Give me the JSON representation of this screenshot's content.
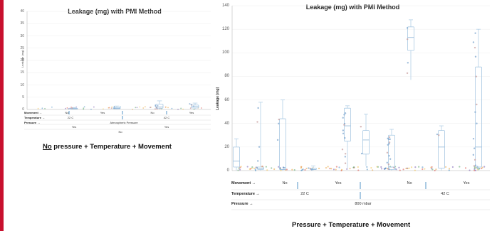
{
  "accent_color": "#c8102e",
  "caption_left": {
    "underlined": "No",
    "rest": " pressure + Temperature + Movement"
  },
  "caption_right": "Pressure + Temperature + Movement",
  "chart_data": [
    {
      "type": "box",
      "title": "Leakage (mg) with PMI Method",
      "ylabel": "Leakage (mg)",
      "ylim": [
        0,
        40
      ],
      "yticks": [
        0,
        5,
        10,
        15,
        20,
        25,
        30,
        35,
        40
      ],
      "header_rows": {
        "movement": {
          "label": "Movement →",
          "values": [
            "No",
            "Yes",
            "No",
            "Yes"
          ]
        },
        "temperature": {
          "label": "Temperature →",
          "values": [
            "22 C",
            "42 C"
          ]
        },
        "pressure": {
          "label": "Pressure →",
          "values": [
            "Atmospheric Pressure"
          ]
        },
        "row4": [
          "Yes",
          "Yes"
        ],
        "row5": [
          "No"
        ]
      },
      "series": [
        {
          "group": "No / 22 C",
          "min": 0.1,
          "q1": 0.2,
          "median": 0.3,
          "q3": 0.5,
          "max": 0.8
        },
        {
          "group": "Yes / 22 C",
          "min": 0.1,
          "q1": 0.3,
          "median": 0.5,
          "q3": 0.8,
          "max": 1.4
        },
        {
          "group": "No / 42 C",
          "min": 0.2,
          "q1": 0.5,
          "median": 1.0,
          "q3": 2.2,
          "max": 3.5
        },
        {
          "group": "Yes / 42 C",
          "min": 0.1,
          "q1": 0.6,
          "median": 1.2,
          "q3": 1.8,
          "max": 2.6
        }
      ]
    },
    {
      "type": "box",
      "title": "Leakage (mg) with PMI Method",
      "ylabel": "Leakage (mg)",
      "ylim": [
        0,
        140
      ],
      "yticks": [
        0,
        20,
        40,
        60,
        80,
        100,
        120,
        140
      ],
      "header_rows": {
        "movement": {
          "label": "Movement →",
          "values": [
            "No",
            "Yes",
            "No",
            "Yes"
          ]
        },
        "temperature": {
          "label": "Temperature →",
          "values": [
            "22 C",
            "42 C"
          ]
        },
        "pressure": {
          "label": "Pressure →",
          "values": [
            "800 mbar"
          ]
        }
      },
      "series": [
        {
          "group": "No / 22 C",
          "box": "b1",
          "min": 0,
          "q1": 3,
          "median": 8,
          "q3": 20,
          "max": 27
        },
        {
          "group": "No / 22 C",
          "box": "b2",
          "min": 0,
          "q1": 1,
          "median": 1.5,
          "q3": 3,
          "max": 58
        },
        {
          "group": "No / 22 C",
          "box": "b3",
          "min": 0,
          "q1": 1,
          "median": 1,
          "q3": 44,
          "max": 60
        },
        {
          "group": "Yes / 22 C",
          "box": "b4",
          "min": 0,
          "q1": 1,
          "median": 1,
          "q3": 2,
          "max": 4
        },
        {
          "group": "Yes / 22 C",
          "box": "b5",
          "min": 2,
          "q1": 25,
          "median": 38,
          "q3": 53,
          "max": 55
        },
        {
          "group": "Yes / 22 C",
          "box": "b6",
          "min": 4,
          "q1": 14,
          "median": 26,
          "q3": 34,
          "max": 48
        },
        {
          "group": "No / 42 C",
          "box": "b7",
          "min": 0,
          "q1": 1,
          "median": 3,
          "q3": 30,
          "max": 35
        },
        {
          "group": "No / 42 C",
          "box": "b8",
          "min": 77,
          "q1": 102,
          "median": 113,
          "q3": 122,
          "max": 128
        },
        {
          "group": "Yes / 42 C",
          "box": "b9",
          "min": 0,
          "q1": 2,
          "median": 20,
          "q3": 34,
          "max": 38
        },
        {
          "group": "Yes / 42 C",
          "box": "b10",
          "min": 0,
          "q1": 3,
          "median": 20,
          "q3": 88,
          "max": 120
        }
      ]
    }
  ]
}
